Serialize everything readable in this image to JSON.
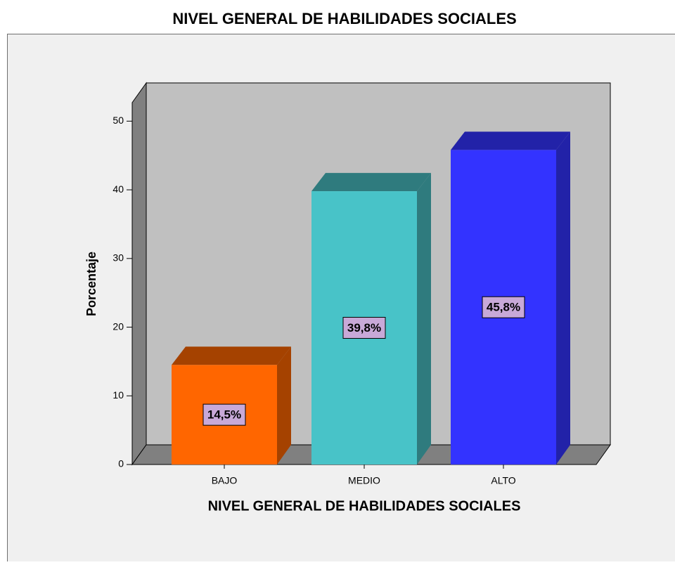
{
  "chart_data": {
    "type": "bar3d",
    "title": "NIVEL GENERAL DE HABILIDADES SOCIALES",
    "x_label": "NIVEL GENERAL DE HABILIDADES SOCIALES",
    "y_label": "Porcentaje",
    "categories": [
      "BAJO",
      "MEDIO",
      "ALTO"
    ],
    "values": [
      14.5,
      39.8,
      45.8
    ],
    "value_labels": [
      "14,5%",
      "39,8%",
      "45,8%"
    ],
    "colors": [
      "#ff6600",
      "#48c3c8",
      "#3333ff"
    ],
    "side_colors": [
      "#a54200",
      "#2f7b7e",
      "#2222a8"
    ],
    "ylim": [
      0,
      52.7
    ],
    "yticks": [
      0,
      10,
      20,
      30,
      40,
      50
    ]
  }
}
